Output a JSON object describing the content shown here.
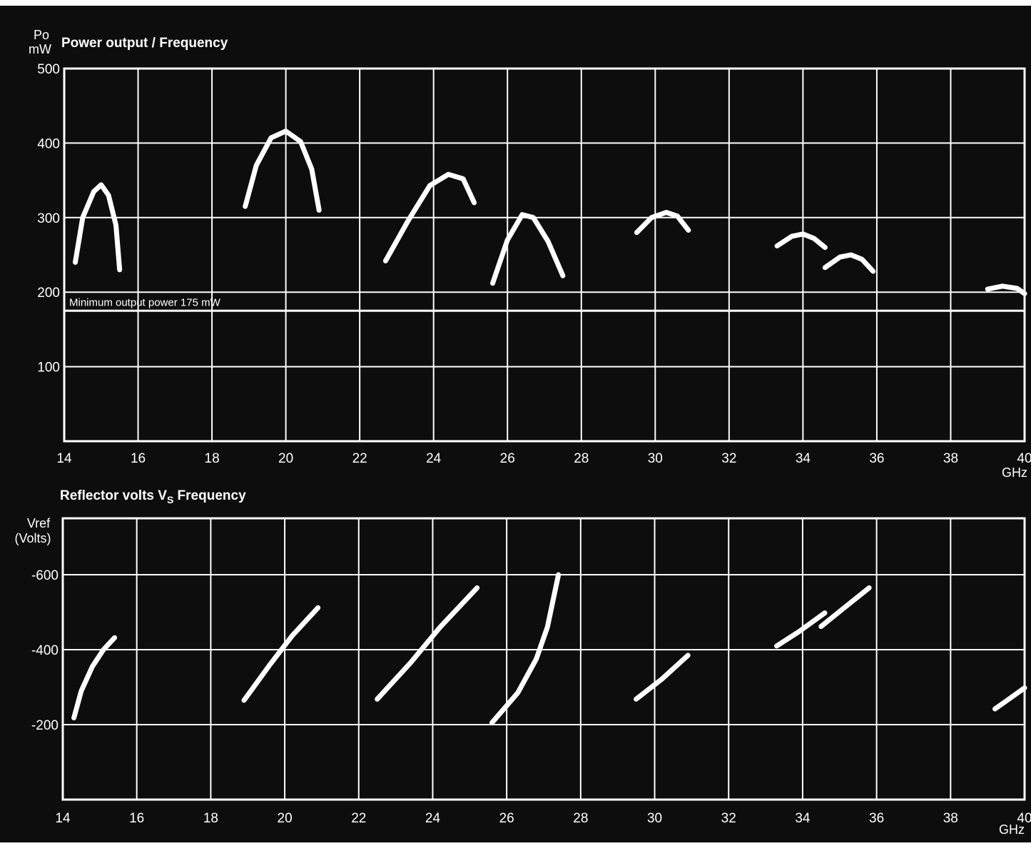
{
  "colors": {
    "background": "#0d0d0d",
    "foreground": "#ffffff"
  },
  "chart_data": [
    {
      "type": "line",
      "title": "Power output / Frequency",
      "ylabel_line1": "Po",
      "ylabel_line2": "mW",
      "xunit": "GHz",
      "xlim": [
        14,
        40
      ],
      "ylim": [
        0,
        500
      ],
      "xticks": [
        14,
        16,
        18,
        20,
        22,
        24,
        26,
        28,
        30,
        32,
        34,
        36,
        38,
        40
      ],
      "xtick_labels": [
        "14",
        "16",
        "18",
        "20",
        "22",
        "24",
        "26",
        "28",
        "30",
        "32",
        "34",
        "36",
        "38",
        "40"
      ],
      "yticks": [
        100,
        200,
        300,
        400,
        500
      ],
      "ytick_labels": [
        "100",
        "200",
        "300",
        "400",
        "500"
      ],
      "grid": true,
      "reference_line": {
        "y": 175,
        "label": "Minimum output power 175 mW"
      },
      "series": [
        {
          "points": [
            [
              14.3,
              240
            ],
            [
              14.5,
              300
            ],
            [
              14.8,
              335
            ],
            [
              15.0,
              344
            ],
            [
              15.2,
              330
            ],
            [
              15.4,
              290
            ],
            [
              15.5,
              230
            ]
          ]
        },
        {
          "points": [
            [
              18.9,
              315
            ],
            [
              19.2,
              370
            ],
            [
              19.6,
              407
            ],
            [
              20.0,
              416
            ],
            [
              20.4,
              402
            ],
            [
              20.7,
              365
            ],
            [
              20.9,
              310
            ]
          ]
        },
        {
          "points": [
            [
              22.7,
              242
            ],
            [
              23.3,
              295
            ],
            [
              23.9,
              343
            ],
            [
              24.4,
              358
            ],
            [
              24.8,
              352
            ],
            [
              25.1,
              320
            ]
          ]
        },
        {
          "points": [
            [
              25.6,
              212
            ],
            [
              26.0,
              270
            ],
            [
              26.4,
              304
            ],
            [
              26.7,
              300
            ],
            [
              27.1,
              268
            ],
            [
              27.5,
              222
            ]
          ]
        },
        {
          "points": [
            [
              29.5,
              280
            ],
            [
              29.9,
              300
            ],
            [
              30.3,
              307
            ],
            [
              30.6,
              302
            ],
            [
              30.9,
              283
            ]
          ]
        },
        {
          "points": [
            [
              33.3,
              262
            ],
            [
              33.7,
              275
            ],
            [
              34.0,
              278
            ],
            [
              34.3,
              272
            ],
            [
              34.6,
              260
            ]
          ]
        },
        {
          "points": [
            [
              34.6,
              233
            ],
            [
              35.0,
              247
            ],
            [
              35.3,
              250
            ],
            [
              35.6,
              244
            ],
            [
              35.9,
              228
            ]
          ]
        },
        {
          "points": [
            [
              39.0,
              204
            ],
            [
              39.4,
              208
            ],
            [
              39.8,
              205
            ],
            [
              40.0,
              198
            ]
          ]
        }
      ]
    },
    {
      "type": "line",
      "title_main": "Reflector volts V",
      "title_sub": "S",
      "title_end": " Frequency",
      "ylabel_line1": "Vref",
      "ylabel_line2": "(Volts)",
      "xunit": "GHz",
      "xlim": [
        14,
        40
      ],
      "ylim": [
        0,
        -750
      ],
      "xticks": [
        14,
        16,
        18,
        20,
        22,
        24,
        26,
        28,
        30,
        32,
        34,
        36,
        38,
        40
      ],
      "xtick_labels": [
        "14",
        "16",
        "18",
        "20",
        "22",
        "24",
        "26",
        "28",
        "30",
        "32",
        "34",
        "36",
        "38",
        "40"
      ],
      "yticks": [
        -200,
        -400,
        -600
      ],
      "ytick_labels": [
        "-200",
        "-400",
        "-600"
      ],
      "grid": true,
      "series": [
        {
          "points": [
            [
              14.3,
              -218
            ],
            [
              14.5,
              -290
            ],
            [
              14.8,
              -355
            ],
            [
              15.1,
              -400
            ],
            [
              15.4,
              -432
            ]
          ]
        },
        {
          "points": [
            [
              18.9,
              -265
            ],
            [
              19.6,
              -360
            ],
            [
              20.2,
              -437
            ],
            [
              20.9,
              -512
            ]
          ]
        },
        {
          "points": [
            [
              22.5,
              -268
            ],
            [
              23.4,
              -365
            ],
            [
              24.2,
              -460
            ],
            [
              25.2,
              -565
            ]
          ]
        },
        {
          "points": [
            [
              25.6,
              -205
            ],
            [
              26.3,
              -285
            ],
            [
              26.8,
              -375
            ],
            [
              27.1,
              -460
            ],
            [
              27.4,
              -600
            ]
          ]
        },
        {
          "points": [
            [
              29.5,
              -268
            ],
            [
              30.2,
              -322
            ],
            [
              30.9,
              -385
            ]
          ]
        },
        {
          "points": [
            [
              33.3,
              -410
            ],
            [
              33.9,
              -448
            ],
            [
              34.6,
              -498
            ]
          ]
        },
        {
          "points": [
            [
              34.5,
              -462
            ],
            [
              35.1,
              -510
            ],
            [
              35.8,
              -565
            ]
          ]
        },
        {
          "points": [
            [
              39.2,
              -242
            ],
            [
              39.6,
              -270
            ],
            [
              40.0,
              -298
            ]
          ]
        }
      ]
    }
  ]
}
